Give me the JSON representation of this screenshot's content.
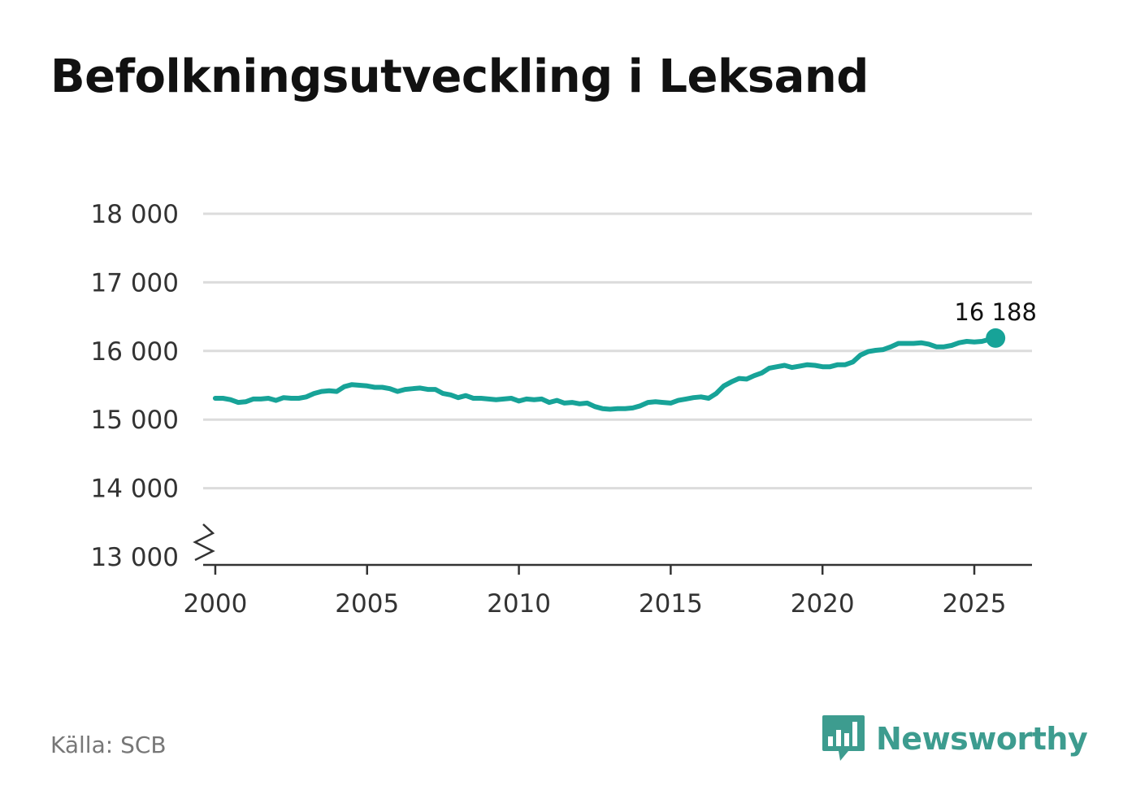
{
  "header": {
    "title": "Befolkningsutveckling i Leksand"
  },
  "footer": {
    "source": "Källa: SCB",
    "brand": "Newsworthy"
  },
  "colors": {
    "line": "#17a398",
    "grid": "#dcdcdc",
    "axis": "#333333",
    "brand": "#3d9c8f"
  },
  "icons": {
    "brand_logo": "bar-chart-speech-bubble-icon",
    "axis_break": "zigzag-axis-break-icon"
  },
  "chart_data": {
    "type": "line",
    "title": "Befolkningsutveckling i Leksand",
    "xlabel": "",
    "ylabel": "",
    "xlim": [
      1999.6,
      2026.9
    ],
    "ylim": [
      13000,
      18000
    ],
    "y_ticks": [
      13000,
      14000,
      15000,
      16000,
      17000,
      18000
    ],
    "y_tick_labels": [
      "13 000",
      "14 000",
      "15 000",
      "16 000",
      "17 000",
      "18 000"
    ],
    "x_ticks": [
      2000,
      2005,
      2010,
      2015,
      2020,
      2025
    ],
    "x_tick_labels": [
      "2000",
      "2005",
      "2010",
      "2015",
      "2020",
      "2025"
    ],
    "grid": true,
    "axis_break": true,
    "end_label": "16 188",
    "series": [
      {
        "x": [
          2000.0,
          2000.25,
          2000.5,
          2000.75,
          2001.0,
          2001.25,
          2001.5,
          2001.75,
          2002.0,
          2002.25,
          2002.5,
          2002.75,
          2003.0,
          2003.25,
          2003.5,
          2003.75,
          2004.0,
          2004.25,
          2004.5,
          2004.75,
          2005.0,
          2005.25,
          2005.5,
          2005.75,
          2006.0,
          2006.25,
          2006.5,
          2006.75,
          2007.0,
          2007.25,
          2007.5,
          2007.75,
          2008.0,
          2008.25,
          2008.5,
          2008.75,
          2009.0,
          2009.25,
          2009.5,
          2009.75,
          2010.0,
          2010.25,
          2010.5,
          2010.75,
          2011.0,
          2011.25,
          2011.5,
          2011.75,
          2012.0,
          2012.25,
          2012.5,
          2012.75,
          2013.0,
          2013.25,
          2013.5,
          2013.75,
          2014.0,
          2014.25,
          2014.5,
          2014.75,
          2015.0,
          2015.25,
          2015.5,
          2015.75,
          2016.0,
          2016.25,
          2016.5,
          2016.75,
          2017.0,
          2017.25,
          2017.5,
          2017.75,
          2018.0,
          2018.25,
          2018.5,
          2018.75,
          2019.0,
          2019.25,
          2019.5,
          2019.75,
          2020.0,
          2020.25,
          2020.5,
          2020.75,
          2021.0,
          2021.25,
          2021.5,
          2021.75,
          2022.0,
          2022.25,
          2022.5,
          2022.75,
          2023.0,
          2023.25,
          2023.5,
          2023.75,
          2024.0,
          2024.25,
          2024.5,
          2024.75,
          2025.0,
          2025.25,
          2025.5,
          2025.7
        ],
        "y": [
          15310,
          15310,
          15290,
          15250,
          15260,
          15300,
          15300,
          15310,
          15280,
          15320,
          15310,
          15310,
          15330,
          15380,
          15410,
          15420,
          15410,
          15480,
          15510,
          15500,
          15490,
          15470,
          15470,
          15450,
          15410,
          15440,
          15450,
          15460,
          15440,
          15440,
          15380,
          15360,
          15320,
          15350,
          15310,
          15310,
          15300,
          15290,
          15300,
          15310,
          15270,
          15300,
          15290,
          15300,
          15250,
          15280,
          15240,
          15250,
          15230,
          15240,
          15190,
          15160,
          15150,
          15160,
          15160,
          15170,
          15200,
          15250,
          15260,
          15250,
          15240,
          15280,
          15300,
          15320,
          15330,
          15310,
          15380,
          15490,
          15550,
          15600,
          15590,
          15640,
          15680,
          15750,
          15770,
          15790,
          15760,
          15780,
          15800,
          15790,
          15770,
          15770,
          15800,
          15800,
          15840,
          15940,
          15990,
          16010,
          16020,
          16060,
          16110,
          16110,
          16110,
          16120,
          16100,
          16060,
          16060,
          16080,
          16120,
          16140,
          16130,
          16140,
          16170,
          16188
        ]
      }
    ]
  }
}
